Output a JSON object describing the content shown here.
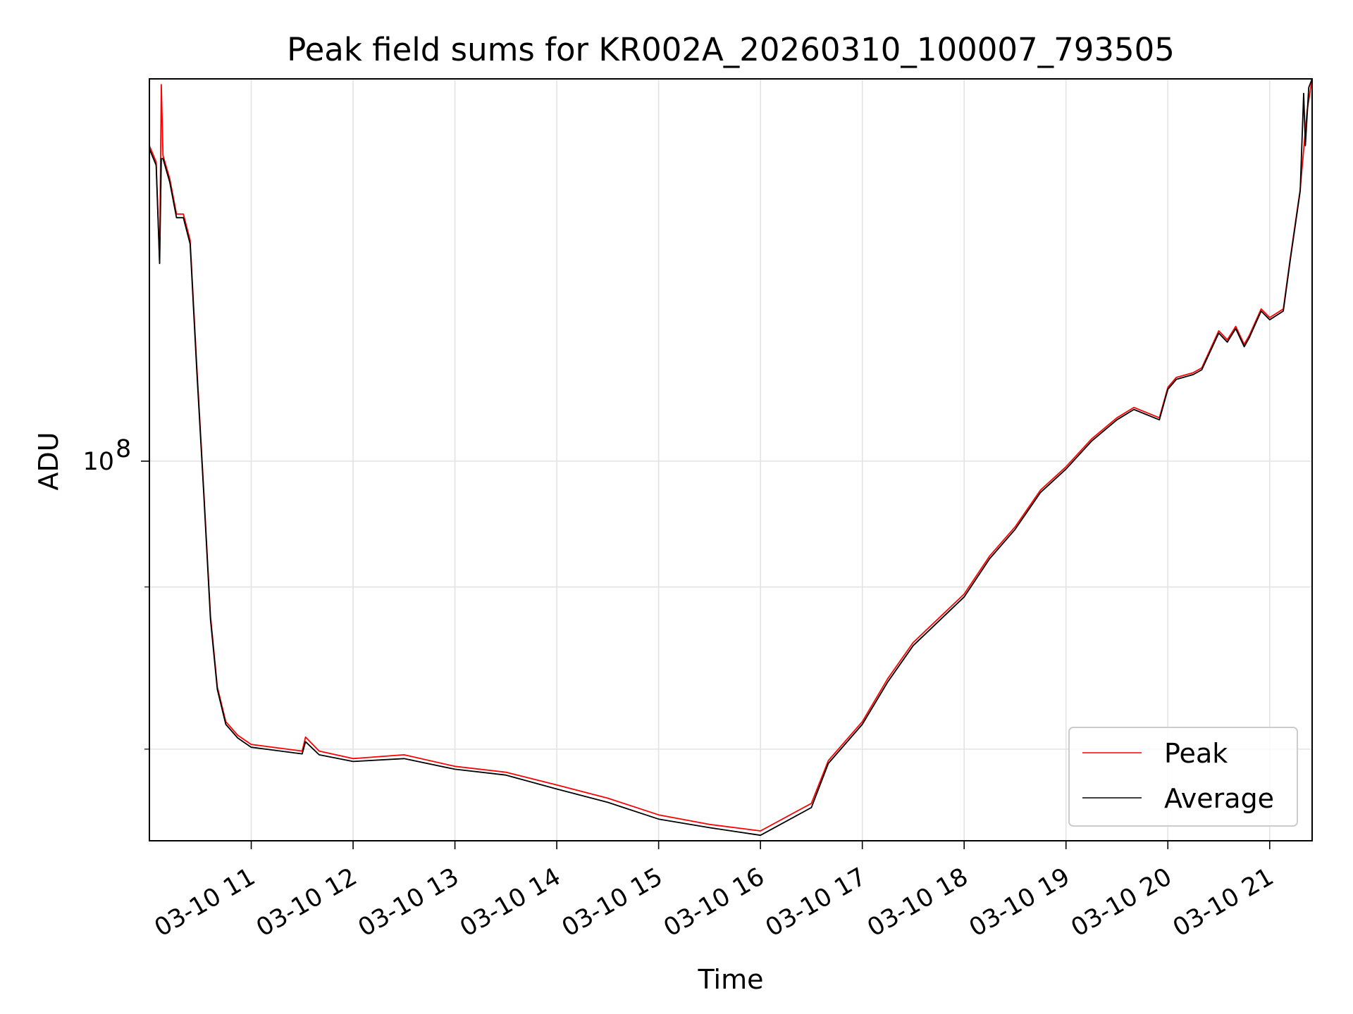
{
  "chart_data": {
    "type": "line",
    "title": "Peak field sums for KR002A_20260310_100007_793505",
    "xlabel": "Time",
    "ylabel": "ADU",
    "y_scale": "log",
    "grid": true,
    "legend_position": "lower-right",
    "x_tick_labels": [
      "03-10 11",
      "03-10 12",
      "03-10 13",
      "03-10 14",
      "03-10 15",
      "03-10 16",
      "03-10 17",
      "03-10 18",
      "03-10 19",
      "03-10 20",
      "03-10 21"
    ],
    "y_major_ticks": [
      {
        "value": 100000000,
        "base": "10",
        "exponent": "8"
      }
    ],
    "y_minor_ticks": [
      60000000,
      80000000
    ],
    "xlim": [
      "2026-03-10 10:00",
      "2026-03-10 21:25"
    ],
    "ylim": [
      51000000,
      197000000
    ],
    "series": [
      {
        "name": "Peak",
        "color": "#ff0000",
        "points": [
          [
            "2026-03-10 10:00",
            175000000
          ],
          [
            "2026-03-10 10:04",
            170000000
          ],
          [
            "2026-03-10 10:06",
            142000000
          ],
          [
            "2026-03-10 10:07",
            195000000
          ],
          [
            "2026-03-10 10:08",
            172000000
          ],
          [
            "2026-03-10 10:12",
            165000000
          ],
          [
            "2026-03-10 10:16",
            155000000
          ],
          [
            "2026-03-10 10:20",
            155000000
          ],
          [
            "2026-03-10 10:24",
            148000000
          ],
          [
            "2026-03-10 10:28",
            118000000
          ],
          [
            "2026-03-10 10:32",
            95000000
          ],
          [
            "2026-03-10 10:36",
            76000000
          ],
          [
            "2026-03-10 10:40",
            67000000
          ],
          [
            "2026-03-10 10:45",
            63000000
          ],
          [
            "2026-03-10 10:52",
            61500000
          ],
          [
            "2026-03-10 11:00",
            60500000
          ],
          [
            "2026-03-10 11:30",
            59800000
          ],
          [
            "2026-03-10 11:32",
            61300000
          ],
          [
            "2026-03-10 11:40",
            59800000
          ],
          [
            "2026-03-10 12:00",
            59000000
          ],
          [
            "2026-03-10 12:30",
            59400000
          ],
          [
            "2026-03-10 13:00",
            58200000
          ],
          [
            "2026-03-10 13:30",
            57600000
          ],
          [
            "2026-03-10 14:00",
            56300000
          ],
          [
            "2026-03-10 14:30",
            55000000
          ],
          [
            "2026-03-10 15:00",
            53400000
          ],
          [
            "2026-03-10 15:30",
            52500000
          ],
          [
            "2026-03-10 16:00",
            51900000
          ],
          [
            "2026-03-10 16:30",
            54500000
          ],
          [
            "2026-03-10 16:40",
            58800000
          ],
          [
            "2026-03-10 17:00",
            63000000
          ],
          [
            "2026-03-10 17:15",
            68000000
          ],
          [
            "2026-03-10 17:30",
            72500000
          ],
          [
            "2026-03-10 18:00",
            79000000
          ],
          [
            "2026-03-10 18:15",
            84500000
          ],
          [
            "2026-03-10 18:30",
            89000000
          ],
          [
            "2026-03-10 18:45",
            95000000
          ],
          [
            "2026-03-10 19:00",
            99000000
          ],
          [
            "2026-03-10 19:15",
            104000000
          ],
          [
            "2026-03-10 19:30",
            108000000
          ],
          [
            "2026-03-10 19:40",
            110000000
          ],
          [
            "2026-03-10 19:55",
            108000000
          ],
          [
            "2026-03-10 20:00",
            114000000
          ],
          [
            "2026-03-10 20:05",
            116000000
          ],
          [
            "2026-03-10 20:15",
            117000000
          ],
          [
            "2026-03-10 20:20",
            118000000
          ],
          [
            "2026-03-10 20:30",
            126000000
          ],
          [
            "2026-03-10 20:35",
            124000000
          ],
          [
            "2026-03-10 20:40",
            127000000
          ],
          [
            "2026-03-10 20:45",
            123000000
          ],
          [
            "2026-03-10 20:48",
            125000000
          ],
          [
            "2026-03-10 20:55",
            131000000
          ],
          [
            "2026-03-10 21:00",
            129000000
          ],
          [
            "2026-03-10 21:08",
            131000000
          ],
          [
            "2026-03-10 21:12",
            143000000
          ],
          [
            "2026-03-10 21:18",
            162000000
          ],
          [
            "2026-03-10 21:22",
            186000000
          ],
          [
            "2026-03-10 21:25",
            197000000
          ]
        ]
      },
      {
        "name": "Average",
        "color": "#000000",
        "points": [
          [
            "2026-03-10 10:00",
            174000000
          ],
          [
            "2026-03-10 10:04",
            169000000
          ],
          [
            "2026-03-10 10:06",
            142000000
          ],
          [
            "2026-03-10 10:07",
            171000000
          ],
          [
            "2026-03-10 10:08",
            171000000
          ],
          [
            "2026-03-10 10:12",
            164000000
          ],
          [
            "2026-03-10 10:16",
            154000000
          ],
          [
            "2026-03-10 10:20",
            154000000
          ],
          [
            "2026-03-10 10:24",
            147000000
          ],
          [
            "2026-03-10 10:28",
            117000000
          ],
          [
            "2026-03-10 10:32",
            94500000
          ],
          [
            "2026-03-10 10:36",
            75500000
          ],
          [
            "2026-03-10 10:40",
            66700000
          ],
          [
            "2026-03-10 10:45",
            62700000
          ],
          [
            "2026-03-10 10:52",
            61200000
          ],
          [
            "2026-03-10 11:00",
            60200000
          ],
          [
            "2026-03-10 11:30",
            59500000
          ],
          [
            "2026-03-10 11:32",
            60800000
          ],
          [
            "2026-03-10 11:40",
            59400000
          ],
          [
            "2026-03-10 12:00",
            58700000
          ],
          [
            "2026-03-10 12:30",
            59000000
          ],
          [
            "2026-03-10 13:00",
            57900000
          ],
          [
            "2026-03-10 13:30",
            57300000
          ],
          [
            "2026-03-10 14:00",
            55900000
          ],
          [
            "2026-03-10 14:30",
            54600000
          ],
          [
            "2026-03-10 15:00",
            53000000
          ],
          [
            "2026-03-10 15:30",
            52200000
          ],
          [
            "2026-03-10 16:00",
            51500000
          ],
          [
            "2026-03-10 16:30",
            54100000
          ],
          [
            "2026-03-10 16:40",
            58500000
          ],
          [
            "2026-03-10 17:00",
            62700000
          ],
          [
            "2026-03-10 17:15",
            67600000
          ],
          [
            "2026-03-10 17:30",
            72100000
          ],
          [
            "2026-03-10 18:00",
            78600000
          ],
          [
            "2026-03-10 18:15",
            84100000
          ],
          [
            "2026-03-10 18:30",
            88600000
          ],
          [
            "2026-03-10 18:45",
            94600000
          ],
          [
            "2026-03-10 19:00",
            98600000
          ],
          [
            "2026-03-10 19:15",
            103600000
          ],
          [
            "2026-03-10 19:30",
            107600000
          ],
          [
            "2026-03-10 19:40",
            109600000
          ],
          [
            "2026-03-10 19:55",
            107600000
          ],
          [
            "2026-03-10 20:00",
            113600000
          ],
          [
            "2026-03-10 20:05",
            115600000
          ],
          [
            "2026-03-10 20:15",
            116600000
          ],
          [
            "2026-03-10 20:20",
            117600000
          ],
          [
            "2026-03-10 20:30",
            125500000
          ],
          [
            "2026-03-10 20:35",
            123500000
          ],
          [
            "2026-03-10 20:40",
            126500000
          ],
          [
            "2026-03-10 20:45",
            122500000
          ],
          [
            "2026-03-10 20:48",
            124500000
          ],
          [
            "2026-03-10 20:55",
            130500000
          ],
          [
            "2026-03-10 21:00",
            128500000
          ],
          [
            "2026-03-10 21:08",
            130500000
          ],
          [
            "2026-03-10 21:12",
            142500000
          ],
          [
            "2026-03-10 21:18",
            161500000
          ],
          [
            "2026-03-10 21:20",
            192000000
          ],
          [
            "2026-03-10 21:21",
            175000000
          ],
          [
            "2026-03-10 21:23",
            194000000
          ],
          [
            "2026-03-10 21:25",
            197000000
          ]
        ]
      }
    ]
  }
}
